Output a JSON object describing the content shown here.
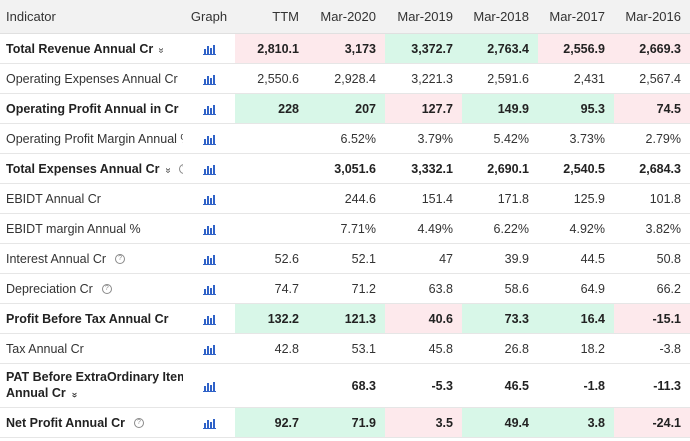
{
  "colors": {
    "green": "#d8f7e8",
    "red": "#fde9ec",
    "graph_icon": "#2f62c8"
  },
  "headers": {
    "indicator": "Indicator",
    "graph": "Graph",
    "periods": [
      "TTM",
      "Mar-2020",
      "Mar-2019",
      "Mar-2018",
      "Mar-2017",
      "Mar-2016"
    ]
  },
  "rows": [
    {
      "label": "Total Revenue Annual Cr",
      "bold": true,
      "chevron": true,
      "help": false,
      "values": [
        "2,810.1",
        "3,173",
        "3,372.7",
        "2,763.4",
        "2,556.9",
        "2,669.3"
      ],
      "tone": [
        "r",
        "r",
        "g",
        "g",
        "r",
        "r"
      ]
    },
    {
      "label": "Operating Expenses Annual Cr",
      "bold": false,
      "chevron": false,
      "help": true,
      "values": [
        "2,550.6",
        "2,928.4",
        "3,221.3",
        "2,591.6",
        "2,431",
        "2,567.4"
      ],
      "tone": [
        "",
        "",
        "",
        "",
        "",
        ""
      ]
    },
    {
      "label": "Operating Profit Annual in Cr",
      "bold": true,
      "chevron": false,
      "help": false,
      "values": [
        "228",
        "207",
        "127.7",
        "149.9",
        "95.3",
        "74.5"
      ],
      "tone": [
        "g",
        "g",
        "r",
        "g",
        "g",
        "r"
      ]
    },
    {
      "label": "Operating Profit Margin Annual %",
      "bold": false,
      "chevron": false,
      "help": false,
      "values": [
        "",
        "6.52%",
        "3.79%",
        "5.42%",
        "3.73%",
        "2.79%"
      ],
      "tone": [
        "",
        "",
        "",
        "",
        "",
        ""
      ]
    },
    {
      "label": "Total Expenses Annual Cr",
      "bold": true,
      "chevron": true,
      "help": true,
      "values": [
        "",
        "3,051.6",
        "3,332.1",
        "2,690.1",
        "2,540.5",
        "2,684.3"
      ],
      "tone": [
        "",
        "",
        "",
        "",
        "",
        ""
      ]
    },
    {
      "label": "EBIDT Annual Cr",
      "bold": false,
      "chevron": false,
      "help": false,
      "values": [
        "",
        "244.6",
        "151.4",
        "171.8",
        "125.9",
        "101.8"
      ],
      "tone": [
        "",
        "",
        "",
        "",
        "",
        ""
      ]
    },
    {
      "label": "EBIDT margin Annual %",
      "bold": false,
      "chevron": false,
      "help": false,
      "values": [
        "",
        "7.71%",
        "4.49%",
        "6.22%",
        "4.92%",
        "3.82%"
      ],
      "tone": [
        "",
        "",
        "",
        "",
        "",
        ""
      ]
    },
    {
      "label": "Interest Annual Cr",
      "bold": false,
      "chevron": false,
      "help": true,
      "values": [
        "52.6",
        "52.1",
        "47",
        "39.9",
        "44.5",
        "50.8"
      ],
      "tone": [
        "",
        "",
        "",
        "",
        "",
        ""
      ]
    },
    {
      "label": "Depreciation Cr",
      "bold": false,
      "chevron": false,
      "help": true,
      "values": [
        "74.7",
        "71.2",
        "63.8",
        "58.6",
        "64.9",
        "66.2"
      ],
      "tone": [
        "",
        "",
        "",
        "",
        "",
        ""
      ]
    },
    {
      "label": "Profit Before Tax Annual Cr",
      "bold": true,
      "chevron": false,
      "help": false,
      "values": [
        "132.2",
        "121.3",
        "40.6",
        "73.3",
        "16.4",
        "-15.1"
      ],
      "tone": [
        "g",
        "g",
        "r",
        "g",
        "g",
        "r"
      ]
    },
    {
      "label": "Tax Annual Cr",
      "bold": false,
      "chevron": false,
      "help": false,
      "values": [
        "42.8",
        "53.1",
        "45.8",
        "26.8",
        "18.2",
        "-3.8"
      ],
      "tone": [
        "",
        "",
        "",
        "",
        "",
        ""
      ]
    },
    {
      "label": "PAT Before ExtraOrdinary Items Annual Cr",
      "bold": true,
      "chevron": true,
      "help": false,
      "wrap": [
        "PAT Before ExtraOrdinary Items",
        "Annual Cr"
      ],
      "values": [
        "",
        "68.3",
        "-5.3",
        "46.5",
        "-1.8",
        "-11.3"
      ],
      "tone": [
        "",
        "",
        "",
        "",
        "",
        ""
      ]
    },
    {
      "label": "Net Profit Annual Cr",
      "bold": true,
      "chevron": false,
      "help": true,
      "values": [
        "92.7",
        "71.9",
        "3.5",
        "49.4",
        "3.8",
        "-24.1"
      ],
      "tone": [
        "g",
        "g",
        "r",
        "g",
        "g",
        "r"
      ]
    }
  ]
}
